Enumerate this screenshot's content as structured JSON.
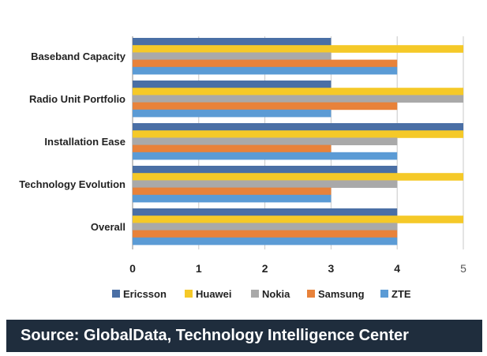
{
  "chart_data": {
    "type": "bar",
    "orientation": "horizontal",
    "title": "",
    "categories": [
      "Baseband Capacity",
      "Radio Unit Portfolio",
      "Installation Ease",
      "Technology Evolution",
      "Overall"
    ],
    "series": [
      {
        "name": "Ericsson",
        "color": "#4a6fa5",
        "values": [
          3,
          3,
          5,
          4,
          4
        ]
      },
      {
        "name": "Huawei",
        "color": "#f5c928",
        "values": [
          5,
          5,
          5,
          5,
          5
        ]
      },
      {
        "name": "Nokia",
        "color": "#a9a9a9",
        "values": [
          3,
          5,
          4,
          4,
          4
        ]
      },
      {
        "name": "Samsung",
        "color": "#e8823a",
        "values": [
          4,
          4,
          3,
          3,
          4
        ]
      },
      {
        "name": "ZTE",
        "color": "#5b9bd5",
        "values": [
          4,
          3,
          4,
          3,
          4
        ]
      }
    ],
    "xlim": [
      0,
      5
    ],
    "xticks": [
      "0",
      "1",
      "2",
      "3",
      "4",
      "5"
    ],
    "xlabel": "",
    "ylabel": "",
    "grid": true,
    "legend": "bottom"
  },
  "source": "Source: GlobalData, Technology Intelligence Center"
}
